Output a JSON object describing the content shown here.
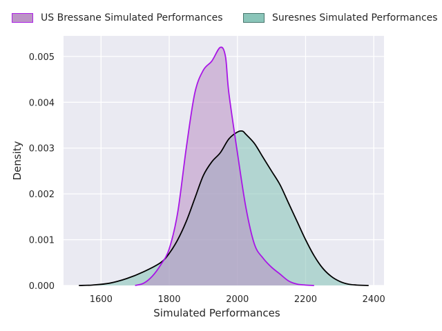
{
  "chart_data": {
    "type": "area",
    "title": "",
    "xlabel": "Simulated Performances",
    "ylabel": "Density",
    "xlim": [
      1490,
      2430
    ],
    "ylim": [
      0,
      0.00545
    ],
    "x_ticks": [
      1600,
      1800,
      2000,
      2200,
      2400
    ],
    "y_ticks": [
      0.0,
      0.001,
      0.002,
      0.003,
      0.004,
      0.005
    ],
    "x_tick_labels": [
      "1600",
      "1800",
      "2000",
      "2200",
      "2400"
    ],
    "y_tick_labels": [
      "0.000",
      "0.001",
      "0.002",
      "0.003",
      "0.004",
      "0.005"
    ],
    "grid": true,
    "legend_position": "top",
    "series": [
      {
        "name": "US Bressane Simulated Performances",
        "line_color": "#a815e6",
        "fill_color": "#b98fc4",
        "x": [
          1700,
          1725,
          1750,
          1775,
          1800,
          1825,
          1850,
          1875,
          1900,
          1925,
          1950,
          1965,
          1975,
          2000,
          2025,
          2050,
          2075,
          2100,
          2125,
          2150,
          2175,
          2200,
          2225
        ],
        "y": [
          0.0,
          5e-05,
          0.0002,
          0.00045,
          0.0008,
          0.0016,
          0.003,
          0.0042,
          0.0047,
          0.0049,
          0.0052,
          0.005,
          0.0042,
          0.0029,
          0.0017,
          0.0009,
          0.0006,
          0.0004,
          0.00025,
          0.0001,
          3e-05,
          1e-05,
          0.0
        ]
      },
      {
        "name": "Suresnes Simulated Performances",
        "line_color": "#000000",
        "fill_color": "#84c2b6",
        "x": [
          1535,
          1575,
          1625,
          1675,
          1725,
          1775,
          1800,
          1825,
          1850,
          1875,
          1900,
          1925,
          1950,
          1975,
          2000,
          2015,
          2025,
          2050,
          2075,
          2100,
          2125,
          2150,
          2175,
          2200,
          2225,
          2250,
          2275,
          2300,
          2325,
          2350,
          2385
        ],
        "y": [
          0.0,
          1e-05,
          5e-05,
          0.00015,
          0.0003,
          0.0005,
          0.0007,
          0.001,
          0.0014,
          0.0019,
          0.0024,
          0.0027,
          0.0029,
          0.0032,
          0.00335,
          0.00337,
          0.0033,
          0.0031,
          0.0028,
          0.0025,
          0.0022,
          0.0018,
          0.0014,
          0.001,
          0.00065,
          0.00038,
          0.0002,
          9e-05,
          3e-05,
          1e-05,
          0.0
        ]
      }
    ]
  }
}
